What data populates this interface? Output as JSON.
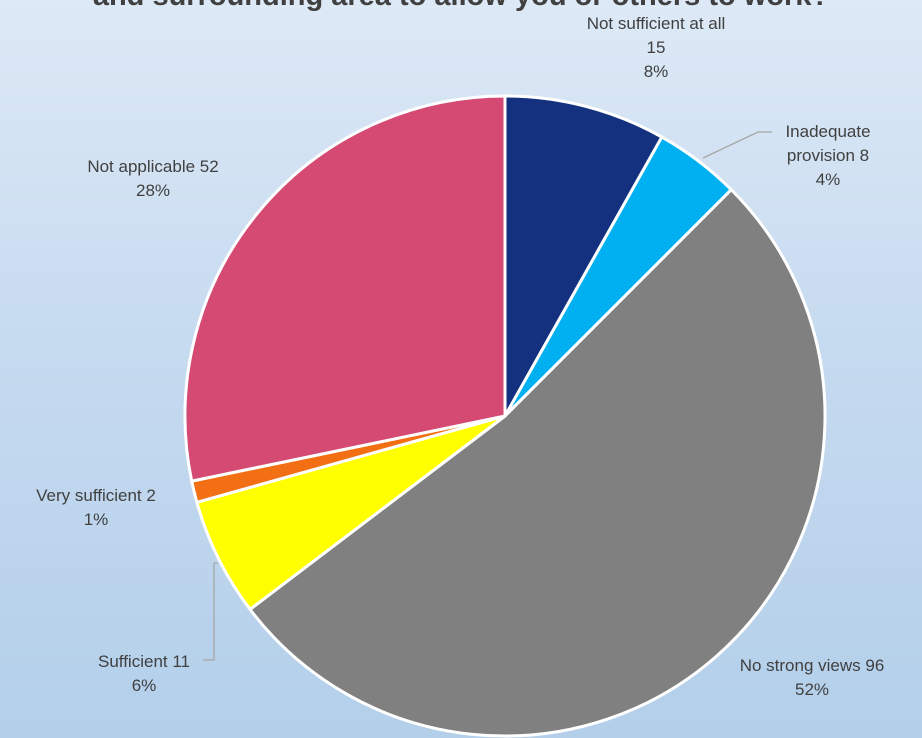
{
  "chart_data": {
    "type": "pie",
    "title": "and surrounding area to allow you or others to work?",
    "slices": [
      {
        "name": "Not sufficient at all",
        "value": 15,
        "percent": "8%",
        "color": "#14317f",
        "label_lines": [
          "Not sufficient at all",
          "15",
          "8%"
        ]
      },
      {
        "name": "Inadequate provision",
        "value": 8,
        "percent": "4%",
        "color": "#00b0f0",
        "label_lines": [
          "Inadequate",
          "provision 8",
          "4%"
        ]
      },
      {
        "name": "No strong views",
        "value": 96,
        "percent": "52%",
        "color": "#808080",
        "label_lines": [
          "No strong views 96",
          "52%"
        ]
      },
      {
        "name": "Sufficient",
        "value": 11,
        "percent": "6%",
        "color": "#ffff00",
        "label_lines": [
          "Sufficient 11",
          "6%"
        ]
      },
      {
        "name": "Very sufficient",
        "value": 2,
        "percent": "1%",
        "color": "#f36f13",
        "label_lines": [
          "Very sufficient 2",
          "1%"
        ]
      },
      {
        "name": "Not applicable",
        "value": 52,
        "percent": "28%",
        "color": "#d44a73",
        "label_lines": [
          "Not applicable 52",
          "28%"
        ]
      }
    ],
    "legend": "none"
  }
}
